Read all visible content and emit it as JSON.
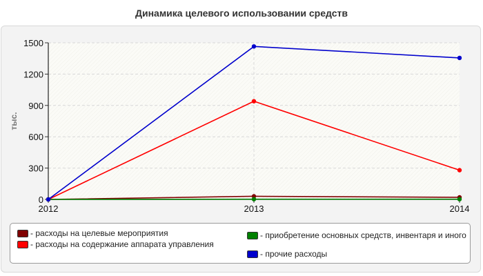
{
  "chart_data": {
    "type": "line",
    "title": "Динамика целевого использовании средств",
    "ylabel": "тыс.",
    "xlabel": "",
    "x": [
      "2012",
      "2013",
      "2014"
    ],
    "ylim": [
      0,
      1500
    ],
    "yticks": [
      "0",
      "300",
      "600",
      "900",
      "1200",
      "1500"
    ],
    "grid": true,
    "legend_position": "bottom",
    "series": [
      {
        "name": "расходы на целевые мероприятия",
        "color": "#800000",
        "values": [
          0,
          30,
          20
        ]
      },
      {
        "name": "расходы на содержание аппарата управления",
        "color": "#ff0000",
        "values": [
          0,
          940,
          280
        ]
      },
      {
        "name": "приобретение основных средств, инвентаря и иного",
        "color": "#008000",
        "values": [
          0,
          2,
          2
        ]
      },
      {
        "name": "прочие расходы",
        "color": "#0000cc",
        "values": [
          0,
          1465,
          1355
        ]
      }
    ]
  },
  "legend": {
    "items": [
      {
        "label": "- расходы на целевые мероприятия",
        "color": "#800000"
      },
      {
        "label": "- расходы на содержание аппарата управления",
        "color": "#ff0000"
      },
      {
        "label": "- приобретение основных средств, инвентаря и иного",
        "color": "#008000"
      },
      {
        "label": "- прочие расходы",
        "color": "#0000cc"
      }
    ]
  }
}
